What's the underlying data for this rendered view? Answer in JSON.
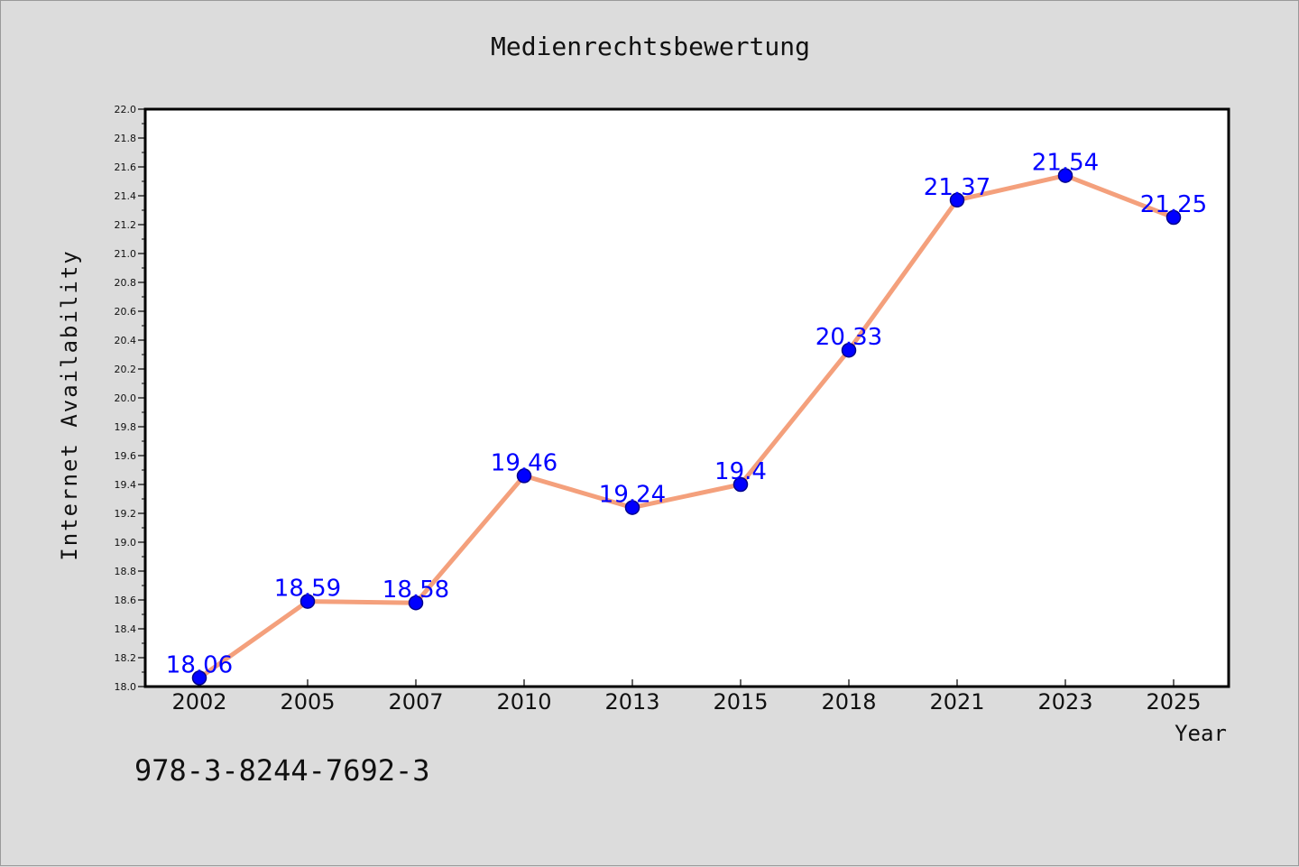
{
  "chart_data": {
    "type": "line",
    "title": "Medienrechtsbewertung",
    "xlabel": "Year",
    "ylabel": "Internet Availability",
    "categories": [
      "2002",
      "2005",
      "2007",
      "2010",
      "2013",
      "2015",
      "2018",
      "2021",
      "2023",
      "2025"
    ],
    "series": [
      {
        "values": [
          18.06,
          18.59,
          18.58,
          19.46,
          19.24,
          19.4,
          20.33,
          21.37,
          21.54,
          21.25
        ]
      }
    ],
    "data_labels": [
      "18.06",
      "18.59",
      "18.58",
      "19.46",
      "19.24",
      "19.4",
      "20.33",
      "21.37",
      "21.54",
      "21.25"
    ],
    "ylim": [
      18.0,
      22.0
    ],
    "yticks": [
      "18.0",
      "18.2",
      "18.4",
      "18.6",
      "18.8",
      "19.0",
      "19.2",
      "19.4",
      "19.6",
      "19.8",
      "20.0",
      "20.2",
      "20.4",
      "20.6",
      "20.8",
      "21.0",
      "21.2",
      "21.4",
      "21.6",
      "21.8",
      "22.0"
    ],
    "grid": false,
    "colors": {
      "line": "#f4a07c",
      "marker": "#0000ff",
      "marker_edge": "#00008b",
      "data_label": "#0000ff",
      "background": "#dcdcdc",
      "plot_background": "#ffffff"
    }
  },
  "footer": {
    "code": "978-3-8244-7692-3"
  }
}
